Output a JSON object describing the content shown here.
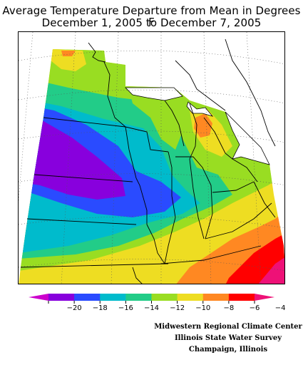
{
  "title_line1": "Average Temperature Departure from Mean in Degrees F",
  "title_line2": "December 1, 2005 to December 7, 2005",
  "legend": {
    "colors": [
      "#cc00cc",
      "#8800dd",
      "#2a4bff",
      "#00bbcc",
      "#22cc88",
      "#99dd22",
      "#eedd22",
      "#ff8822",
      "#ff0000",
      "#ee1177"
    ],
    "ticks": [
      "−20",
      "−18",
      "−16",
      "−14",
      "−12",
      "−10",
      "−8",
      "−6",
      "−4"
    ]
  },
  "credits": {
    "line1": "Midwestern Regional Climate Center",
    "line2": "Illinois State Water Survey",
    "line3": "Champaign, Illinois"
  }
}
